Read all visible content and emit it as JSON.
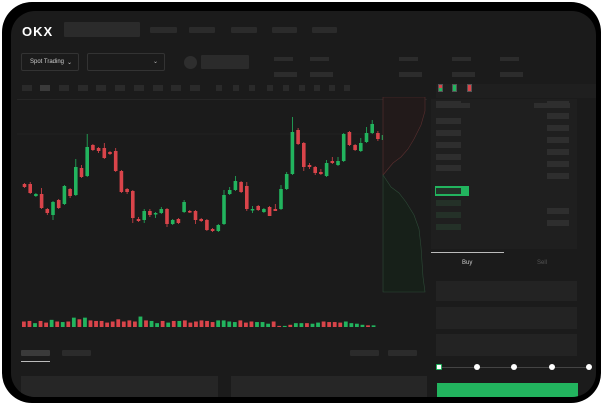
{
  "header": {
    "logo": "OKX",
    "nav_placeholders": 5
  },
  "market": {
    "mode_dropdown": "Spot Trading",
    "mode_chevron": "⌄",
    "pair_chevron": "⌄"
  },
  "order_panel": {
    "buy_tab": "Buy",
    "sell_tab": "Sell",
    "active_tab": "Buy",
    "slider_steps": 5,
    "slider_value_pct": 0
  },
  "colors": {
    "up": "#22b45e",
    "down": "#d9444a",
    "accent": "#22b45e",
    "background": "#1b1b1b"
  },
  "chart": {
    "candles": [
      [
        118,
        115,
        119,
        114
      ],
      [
        118,
        109,
        120,
        108
      ],
      [
        106,
        108,
        109,
        105
      ],
      [
        108,
        94,
        114,
        93
      ],
      [
        93,
        89,
        94,
        87
      ],
      [
        87,
        100,
        101,
        82
      ],
      [
        102,
        94,
        103,
        93
      ],
      [
        98,
        116,
        117,
        97
      ],
      [
        113,
        106,
        114,
        104
      ],
      [
        107,
        135,
        143,
        106
      ],
      [
        134,
        125,
        137,
        124
      ],
      [
        126,
        155,
        168,
        125
      ],
      [
        157,
        152,
        158,
        151
      ],
      [
        154,
        151,
        155,
        149
      ],
      [
        154,
        144,
        159,
        143
      ],
      [
        150,
        148,
        151,
        147
      ],
      [
        151,
        131,
        154,
        130
      ],
      [
        131,
        110,
        132,
        109
      ],
      [
        113,
        110,
        114,
        108
      ],
      [
        111,
        84,
        112,
        79
      ],
      [
        83,
        81,
        85,
        80
      ],
      [
        82,
        91,
        93,
        79
      ],
      [
        91,
        87,
        93,
        85
      ],
      [
        88,
        89,
        90,
        84
      ],
      [
        89,
        93,
        95,
        88
      ],
      [
        93,
        78,
        94,
        75
      ],
      [
        78,
        82,
        83,
        77
      ],
      [
        83,
        79,
        84,
        78
      ],
      [
        90,
        100,
        102,
        89
      ],
      [
        91,
        90,
        92,
        89
      ],
      [
        91,
        82,
        92,
        78
      ],
      [
        83,
        81,
        84,
        80
      ],
      [
        82,
        72,
        83,
        71
      ],
      [
        73,
        71,
        74,
        70
      ],
      [
        71,
        77,
        78,
        70
      ],
      [
        78,
        107,
        112,
        77
      ],
      [
        108,
        112,
        115,
        107
      ],
      [
        112,
        121,
        126,
        111
      ],
      [
        120,
        110,
        121,
        109
      ],
      [
        116,
        93,
        120,
        91
      ],
      [
        92,
        93,
        96,
        89
      ],
      [
        96,
        92,
        97,
        91
      ],
      [
        90,
        93,
        94,
        89
      ],
      [
        95,
        86,
        96,
        86
      ],
      [
        93,
        91,
        98,
        91
      ],
      [
        93,
        113,
        117,
        92
      ],
      [
        113,
        128,
        130,
        112
      ],
      [
        128,
        170,
        185,
        127
      ],
      [
        172,
        158,
        174,
        157
      ],
      [
        159,
        135,
        160,
        131
      ],
      [
        137,
        135,
        139,
        133
      ],
      [
        135,
        129,
        136,
        127
      ],
      [
        130,
        128,
        133,
        127
      ],
      [
        126,
        139,
        142,
        125
      ],
      [
        141,
        139,
        145,
        138
      ],
      [
        137,
        141,
        145,
        136
      ],
      [
        141,
        168,
        169,
        140
      ],
      [
        170,
        157,
        171,
        156
      ],
      [
        157,
        152,
        158,
        151
      ],
      [
        151,
        159,
        164,
        150
      ],
      [
        160,
        169,
        175,
        159
      ],
      [
        169,
        178,
        182,
        168
      ],
      [
        169,
        163,
        171,
        161
      ],
      [
        162,
        167,
        173,
        161
      ]
    ],
    "volumes": [
      [
        10,
        "d"
      ],
      [
        11,
        "d"
      ],
      [
        7,
        "u"
      ],
      [
        11,
        "d"
      ],
      [
        8,
        "d"
      ],
      [
        13,
        "u"
      ],
      [
        10,
        "d"
      ],
      [
        9,
        "u"
      ],
      [
        10,
        "d"
      ],
      [
        17,
        "u"
      ],
      [
        14,
        "d"
      ],
      [
        17,
        "u"
      ],
      [
        12,
        "d"
      ],
      [
        11,
        "d"
      ],
      [
        11,
        "d"
      ],
      [
        8,
        "d"
      ],
      [
        10,
        "d"
      ],
      [
        14,
        "d"
      ],
      [
        10,
        "d"
      ],
      [
        12,
        "d"
      ],
      [
        10,
        "d"
      ],
      [
        19,
        "u"
      ],
      [
        12,
        "d"
      ],
      [
        11,
        "u"
      ],
      [
        7,
        "u"
      ],
      [
        11,
        "d"
      ],
      [
        8,
        "u"
      ],
      [
        11,
        "d"
      ],
      [
        11,
        "u"
      ],
      [
        12,
        "d"
      ],
      [
        8,
        "d"
      ],
      [
        10,
        "d"
      ],
      [
        12,
        "d"
      ],
      [
        11,
        "d"
      ],
      [
        9,
        "d"
      ],
      [
        12,
        "u"
      ],
      [
        12,
        "u"
      ],
      [
        10,
        "u"
      ],
      [
        9,
        "u"
      ],
      [
        12,
        "d"
      ],
      [
        8,
        "d"
      ],
      [
        10,
        "d"
      ],
      [
        9,
        "u"
      ],
      [
        9,
        "u"
      ],
      [
        6,
        "u"
      ],
      [
        10,
        "d"
      ],
      [
        2,
        "d"
      ],
      [
        2,
        "u"
      ],
      [
        4,
        "d"
      ],
      [
        7,
        "u"
      ],
      [
        7,
        "u"
      ],
      [
        7,
        "d"
      ],
      [
        6,
        "u"
      ],
      [
        8,
        "u"
      ],
      [
        10,
        "d"
      ],
      [
        9,
        "d"
      ],
      [
        9,
        "d"
      ],
      [
        8,
        "d"
      ],
      [
        10,
        "u"
      ],
      [
        7,
        "u"
      ],
      [
        6,
        "u"
      ],
      [
        4,
        "u"
      ],
      [
        3,
        "d"
      ],
      [
        3,
        "u"
      ]
    ]
  }
}
